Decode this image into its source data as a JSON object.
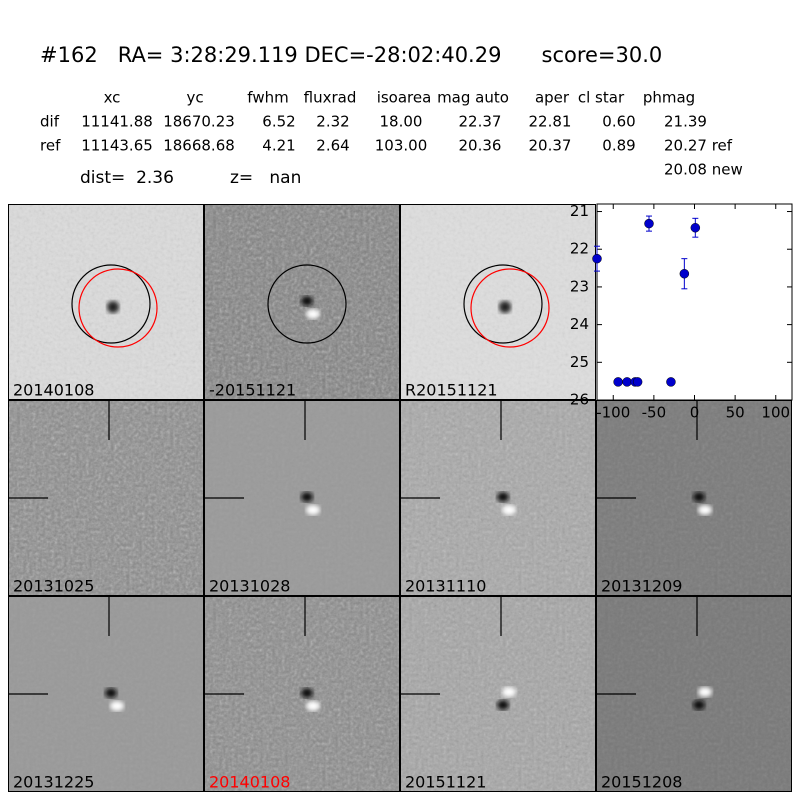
{
  "header": {
    "title": "#162   RA= 3:28:29.119 DEC=-28:02:40.29      score=30.0",
    "dist": "dist=  2.36",
    "z": "z=   nan"
  },
  "table": {
    "columns": [
      "xc",
      "yc",
      "fwhm",
      "fluxrad",
      "isoarea",
      "mag auto",
      "aper",
      "cl star",
      "phmag"
    ],
    "rows": [
      [
        "dif",
        "11141.88",
        "18670.23",
        "6.52",
        "2.32",
        "18.00",
        "22.37",
        "22.81",
        "0.60",
        "21.39"
      ],
      [
        "ref",
        "11143.65",
        "18668.68",
        "4.21",
        "2.64",
        "103.00",
        "20.36",
        "20.37",
        "0.89",
        "20.27 ref"
      ]
    ],
    "extra": "20.08 new"
  },
  "panels": [
    {
      "label": "20140108",
      "label_color": "#000000"
    },
    {
      "label": "-20151121",
      "label_color": "#000000"
    },
    {
      "label": "R20151121",
      "label_color": "#000000"
    },
    {
      "label": "20131025",
      "label_color": "#000000"
    },
    {
      "label": "20131028",
      "label_color": "#000000"
    },
    {
      "label": "20131110",
      "label_color": "#000000"
    },
    {
      "label": "20131209",
      "label_color": "#000000"
    },
    {
      "label": "20131225",
      "label_color": "#000000"
    },
    {
      "label": "20140108",
      "label_color": "#ff0000"
    },
    {
      "label": "20151121",
      "label_color": "#000000"
    },
    {
      "label": "20151208",
      "label_color": "#000000"
    }
  ],
  "chart_data": {
    "type": "scatter",
    "x": [
      -120,
      -94,
      -83,
      -73,
      -70,
      -56,
      -29,
      -12.5,
      1
    ],
    "series": [
      {
        "color": "#0000cc",
        "values": [
          22.25,
          25.52,
          25.52,
          25.52,
          25.52,
          21.32,
          25.52,
          22.65,
          21.43
        ],
        "errors": [
          0.33,
          0.05,
          0.05,
          0.05,
          0.05,
          0.2,
          0.05,
          0.4,
          0.25
        ]
      }
    ],
    "xlim": [
      -120,
      120
    ],
    "ylim": [
      26,
      20.8
    ],
    "xticks": [
      -100,
      -50,
      0,
      50,
      100
    ],
    "yticks": [
      21,
      22,
      23,
      24,
      25,
      26
    ]
  }
}
